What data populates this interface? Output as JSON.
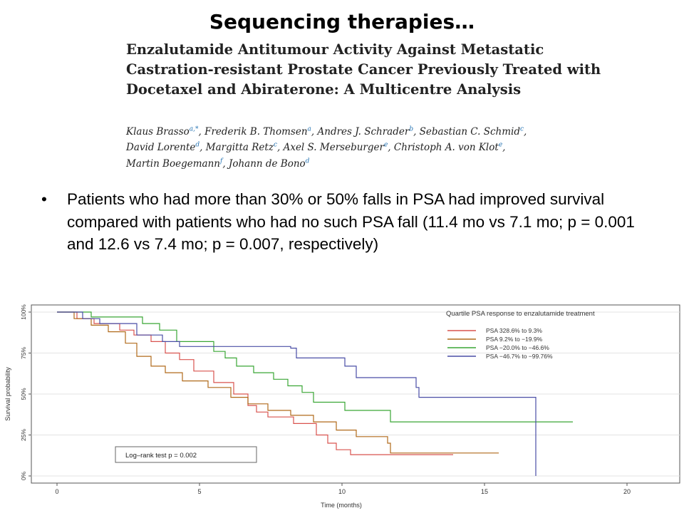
{
  "slide": {
    "title": "Sequencing therapies…"
  },
  "paper": {
    "title_lines": [
      "Enzalutamide Antitumour Activity Against Metastatic",
      "Castration-resistant Prostate Cancer Previously Treated with",
      "Docetaxel and Abiraterone: A Multicentre Analysis"
    ],
    "authors": [
      {
        "name": "Klaus Brasso",
        "aff": "a,*"
      },
      {
        "name": "Frederik B. Thomsen",
        "aff": "a"
      },
      {
        "name": "Andres J. Schrader",
        "aff": "b"
      },
      {
        "name": "Sebastian C. Schmid",
        "aff": "c"
      },
      {
        "name": "David Lorente",
        "aff": "d"
      },
      {
        "name": "Margitta Retz",
        "aff": "c"
      },
      {
        "name": "Axel S. Merseburger",
        "aff": "e"
      },
      {
        "name": "Christoph A. von Klot",
        "aff": "e"
      },
      {
        "name": "Martin Boegemann",
        "aff": "f"
      },
      {
        "name": "Johann de Bono",
        "aff": "d"
      }
    ]
  },
  "bullet": {
    "marker": "•",
    "text": "Patients who had more than 30% or 50% falls in PSA had improved survival compared with patients who had no such PSA fall (11.4 mo vs 7.1 mo; p = 0.001 and 12.6 vs 7.4 mo; p = 0.007, respectively)"
  },
  "chart_data": {
    "type": "line",
    "step": true,
    "xlabel": "Time (months)",
    "ylabel": "Survival probability",
    "xlim": [
      0,
      21
    ],
    "ylim": [
      0,
      1
    ],
    "xticks": [
      0,
      5,
      10,
      15,
      20
    ],
    "yticks": [
      {
        "value": 0,
        "label": "0%"
      },
      {
        "value": 0.25,
        "label": "25%"
      },
      {
        "value": 0.5,
        "label": "50%"
      },
      {
        "value": 0.75,
        "label": "75%"
      },
      {
        "value": 1,
        "label": "100%"
      }
    ],
    "grid": true,
    "legend": {
      "title": "Quartile PSA response to enzalutamide treatment",
      "position": "top-right"
    },
    "annotation": "Log–rank test p = 0.002",
    "series": [
      {
        "name": "PSA 328.6% to 9.3%",
        "color": "#d9534f",
        "points": [
          [
            0,
            1.0
          ],
          [
            0.7,
            0.96
          ],
          [
            1.3,
            0.93
          ],
          [
            2.2,
            0.89
          ],
          [
            2.7,
            0.86
          ],
          [
            3.3,
            0.82
          ],
          [
            3.8,
            0.75
          ],
          [
            4.3,
            0.71
          ],
          [
            4.8,
            0.64
          ],
          [
            5.5,
            0.57
          ],
          [
            6.2,
            0.5
          ],
          [
            6.7,
            0.43
          ],
          [
            7.0,
            0.39
          ],
          [
            7.4,
            0.36
          ],
          [
            8.3,
            0.32
          ],
          [
            9.1,
            0.25
          ],
          [
            9.5,
            0.2
          ],
          [
            9.8,
            0.16
          ],
          [
            10.3,
            0.13
          ],
          [
            13.9,
            0.13
          ]
        ]
      },
      {
        "name": "PSA 9.2% to −19.9%",
        "color": "#b06a1a",
        "points": [
          [
            0,
            1.0
          ],
          [
            0.6,
            0.96
          ],
          [
            1.2,
            0.92
          ],
          [
            1.8,
            0.88
          ],
          [
            2.4,
            0.81
          ],
          [
            2.8,
            0.73
          ],
          [
            3.3,
            0.67
          ],
          [
            3.8,
            0.63
          ],
          [
            4.4,
            0.58
          ],
          [
            5.3,
            0.54
          ],
          [
            6.1,
            0.48
          ],
          [
            6.7,
            0.44
          ],
          [
            7.4,
            0.4
          ],
          [
            8.2,
            0.37
          ],
          [
            9.0,
            0.33
          ],
          [
            9.8,
            0.28
          ],
          [
            10.5,
            0.24
          ],
          [
            11.6,
            0.2
          ],
          [
            11.7,
            0.14
          ],
          [
            15.5,
            0.14
          ]
        ]
      },
      {
        "name": "PSA −20.0% to −46.6%",
        "color": "#3aa635",
        "points": [
          [
            0,
            1.0
          ],
          [
            0.6,
            1.0
          ],
          [
            1.2,
            0.97
          ],
          [
            1.8,
            0.97
          ],
          [
            3.0,
            0.93
          ],
          [
            3.6,
            0.89
          ],
          [
            4.2,
            0.82
          ],
          [
            5.5,
            0.76
          ],
          [
            5.9,
            0.72
          ],
          [
            6.3,
            0.67
          ],
          [
            6.9,
            0.63
          ],
          [
            7.6,
            0.59
          ],
          [
            8.1,
            0.55
          ],
          [
            8.6,
            0.51
          ],
          [
            9.0,
            0.45
          ],
          [
            10.1,
            0.4
          ],
          [
            11.7,
            0.33
          ],
          [
            18.1,
            0.33
          ]
        ]
      },
      {
        "name": "PSA −46.7% to −99.76%",
        "color": "#4a4ea6",
        "points": [
          [
            0,
            1.0
          ],
          [
            0.9,
            0.96
          ],
          [
            1.5,
            0.93
          ],
          [
            2.4,
            0.93
          ],
          [
            2.8,
            0.86
          ],
          [
            3.7,
            0.82
          ],
          [
            4.3,
            0.79
          ],
          [
            8.2,
            0.78
          ],
          [
            8.4,
            0.72
          ],
          [
            10.1,
            0.67
          ],
          [
            10.5,
            0.6
          ],
          [
            12.6,
            0.54
          ],
          [
            12.7,
            0.48
          ],
          [
            16.8,
            0.48
          ],
          [
            16.8,
            0.0
          ]
        ]
      }
    ]
  }
}
